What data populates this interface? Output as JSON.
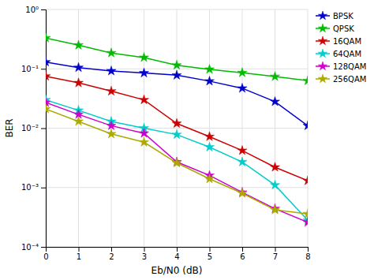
{
  "chart_data": {
    "type": "line",
    "xlabel": "Eb/N0 (dB)",
    "ylabel": "BER",
    "x": [
      0,
      1,
      2,
      3,
      4,
      5,
      6,
      7,
      8
    ],
    "series": [
      {
        "name": "BPSK",
        "color": "#0000CC",
        "marker": "star",
        "values": [
          0.13,
          0.105,
          0.092,
          0.085,
          0.078,
          0.062,
          0.047,
          0.028,
          0.011
        ]
      },
      {
        "name": "QPSK",
        "color": "#00BB00",
        "marker": "star",
        "values": [
          0.33,
          0.25,
          0.185,
          0.155,
          0.115,
          0.098,
          0.086,
          0.074,
          0.063
        ]
      },
      {
        "name": "16QAM",
        "color": "#CC0000",
        "marker": "star",
        "values": [
          0.075,
          0.058,
          0.042,
          0.03,
          0.012,
          0.0072,
          0.0042,
          0.0022,
          0.0013
        ]
      },
      {
        "name": "64QAM",
        "color": "#00CCCC",
        "marker": "star",
        "values": [
          0.03,
          0.02,
          0.013,
          0.01,
          0.0078,
          0.0048,
          0.0027,
          0.0011,
          0.00028
        ]
      },
      {
        "name": "128QAM",
        "color": "#CC00CC",
        "marker": "star",
        "values": [
          0.027,
          0.017,
          0.011,
          0.0082,
          0.0027,
          0.0016,
          0.00083,
          0.00044,
          0.00026
        ]
      },
      {
        "name": "256QAM",
        "color": "#AAAA00",
        "marker": "star",
        "values": [
          0.021,
          0.013,
          0.008,
          0.0058,
          0.0026,
          0.0014,
          0.0008,
          0.00042,
          0.00036
        ]
      }
    ],
    "xlim": [
      0,
      8
    ],
    "ylim": [
      0.0001,
      1
    ],
    "xticks": [
      0,
      1,
      2,
      3,
      4,
      5,
      6,
      7,
      8
    ],
    "yticks": [
      {
        "value": 0.0001,
        "label": "10⁻⁴"
      },
      {
        "value": 0.001,
        "label": "10⁻³"
      },
      {
        "value": 0.01,
        "label": "10⁻²"
      },
      {
        "value": 0.1,
        "label": "10⁻¹"
      },
      {
        "value": 1,
        "label": "10⁰"
      }
    ],
    "log": "y",
    "grid": true,
    "legend": "right"
  }
}
